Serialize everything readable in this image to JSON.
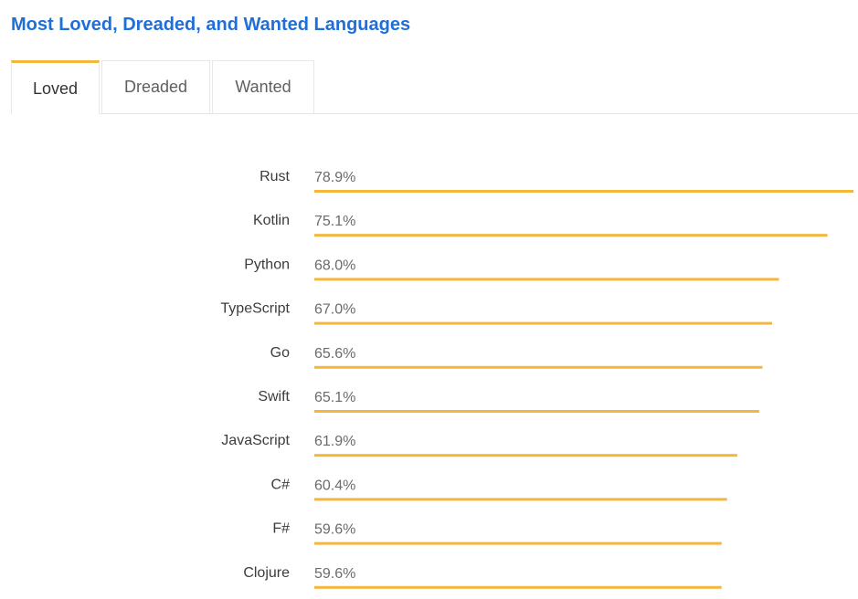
{
  "header": {
    "title": "Most Loved, Dreaded, and Wanted Languages"
  },
  "tabs": [
    {
      "label": "Loved",
      "active": true
    },
    {
      "label": "Dreaded",
      "active": false
    },
    {
      "label": "Wanted",
      "active": false
    }
  ],
  "colors": {
    "accent": "#f5b63c",
    "title": "#1f6fd9"
  },
  "chart_data": {
    "type": "bar",
    "orientation": "horizontal",
    "categories": [
      "Rust",
      "Kotlin",
      "Python",
      "TypeScript",
      "Go",
      "Swift",
      "JavaScript",
      "C#",
      "F#",
      "Clojure"
    ],
    "values": [
      78.9,
      75.1,
      68.0,
      67.0,
      65.6,
      65.1,
      61.9,
      60.4,
      59.6,
      59.6
    ],
    "value_labels": [
      "78.9%",
      "75.1%",
      "68.0%",
      "67.0%",
      "65.6%",
      "65.1%",
      "61.9%",
      "60.4%",
      "59.6%",
      "59.6%"
    ],
    "title": "",
    "xlabel": "",
    "ylabel": "",
    "xlim": [
      0,
      78.9
    ],
    "grid": false,
    "legend": "none"
  }
}
